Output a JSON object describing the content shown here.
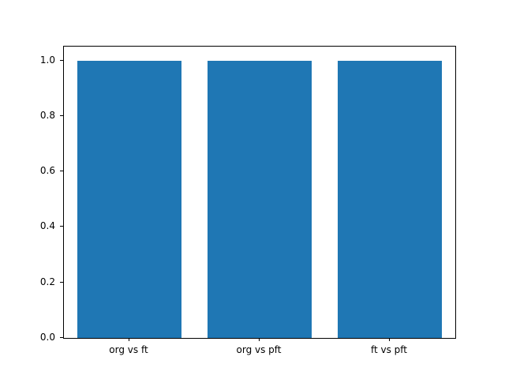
{
  "chart_data": {
    "type": "bar",
    "title": "",
    "xlabel": "",
    "ylabel": "",
    "categories": [
      "org vs ft",
      "org vs pft",
      "ft vs pft"
    ],
    "values": [
      1.0,
      1.0,
      1.0
    ],
    "ylim": [
      0.0,
      1.05
    ],
    "yticks": [
      "0.0",
      "0.2",
      "0.4",
      "0.6",
      "0.8",
      "1.0"
    ],
    "grid": false,
    "legend": "none",
    "bar_color": "#1f77b4",
    "bar_width_fraction": 0.8
  }
}
